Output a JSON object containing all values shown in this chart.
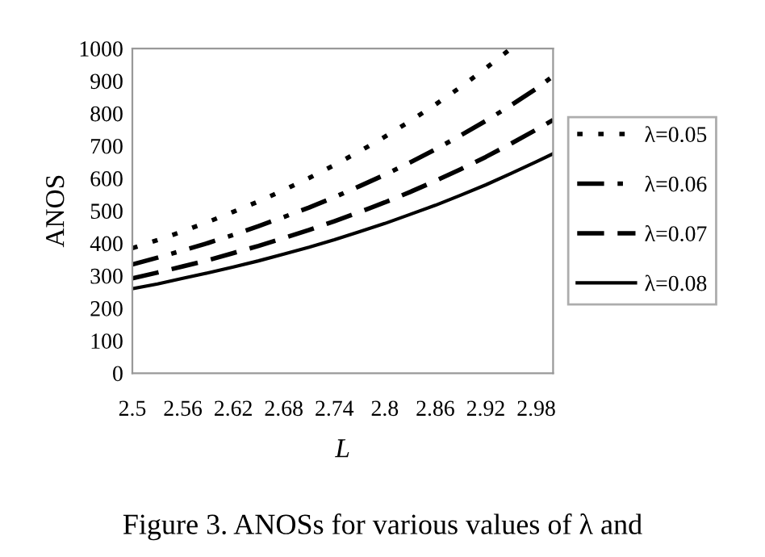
{
  "chart_data": {
    "type": "line",
    "xlabel": "L",
    "ylabel": "ANOS",
    "x": [
      2.5,
      2.53,
      2.56,
      2.59,
      2.62,
      2.65,
      2.68,
      2.71,
      2.74,
      2.77,
      2.8,
      2.83,
      2.86,
      2.89,
      2.92,
      2.95,
      2.98,
      3.0
    ],
    "series": [
      {
        "name": "λ=0.05",
        "color": "#000000",
        "line_style": "dotted",
        "values": [
          385,
          410,
          437,
          466,
          497,
          529,
          564,
          601,
          641,
          683,
          728,
          776,
          827,
          881,
          939,
          1000,
          null,
          null
        ]
      },
      {
        "name": "λ=0.06",
        "color": "#000000",
        "line_style": "dashdot",
        "values": [
          335,
          356,
          378,
          401,
          426,
          453,
          481,
          510,
          542,
          576,
          611,
          649,
          689,
          732,
          777,
          825,
          876,
          915
        ]
      },
      {
        "name": "λ=0.07",
        "color": "#000000",
        "line_style": "dashed",
        "values": [
          292,
          310,
          329,
          348,
          370,
          392,
          416,
          441,
          468,
          496,
          526,
          558,
          592,
          628,
          666,
          707,
          750,
          780
        ]
      },
      {
        "name": "λ=0.08",
        "color": "#000000",
        "line_style": "solid",
        "values": [
          260,
          275,
          292,
          309,
          327,
          346,
          367,
          388,
          411,
          436,
          461,
          489,
          517,
          548,
          580,
          615,
          651,
          676
        ]
      }
    ],
    "xlim": [
      2.5,
      3.0
    ],
    "xticks": [
      2.5,
      2.56,
      2.62,
      2.68,
      2.74,
      2.8,
      2.86,
      2.92,
      2.98
    ],
    "ylim": [
      0,
      1000
    ],
    "yticks": [
      0,
      100,
      200,
      300,
      400,
      500,
      600,
      700,
      800,
      900,
      1000
    ],
    "grid": false,
    "legend": "right",
    "marker": "none",
    "annotations": [
      "Figure 3. ANOSs for various values of λ and"
    ]
  }
}
